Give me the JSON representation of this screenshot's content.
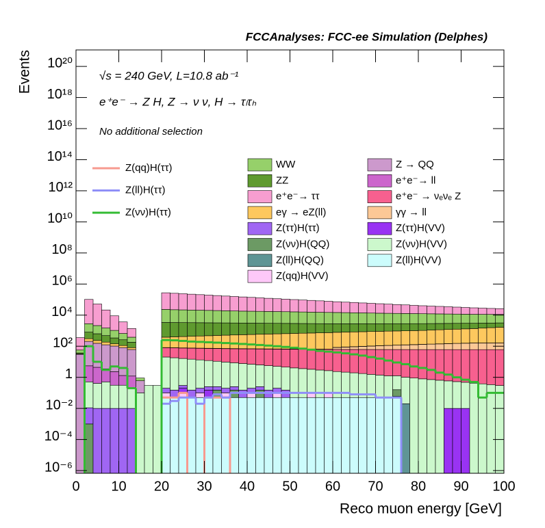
{
  "chart_data": {
    "type": "stacked_histogram",
    "title": "FCCAnalyses: FCC-ee Simulation (Delphes)",
    "annotations": [
      "√s = 240 GeV, L=10.8 ab⁻¹",
      "e⁺e⁻ → Z H, Z → ν ν, H → τₗτₕ",
      "No additional selection"
    ],
    "x_label": "Reco muon energy [GeV]",
    "y_label": "Events",
    "log_y": true,
    "bins": [
      0,
      2,
      4,
      6,
      8,
      10,
      12,
      14,
      16,
      18,
      20,
      22,
      24,
      26,
      28,
      30,
      32,
      34,
      36,
      38,
      40,
      42,
      44,
      46,
      48,
      50,
      52,
      54,
      56,
      58,
      60,
      62,
      64,
      66,
      68,
      70,
      72,
      74,
      76,
      78,
      80,
      82,
      84,
      86,
      88,
      90,
      92,
      94,
      96,
      98,
      100
    ],
    "xlim": [
      0,
      100
    ],
    "xticks": [
      0,
      10,
      20,
      30,
      40,
      50,
      60,
      70,
      80,
      90,
      100
    ],
    "ylim": [
      6.7e-07,
      1.15e+21
    ],
    "yticks": [
      {
        "value": 1e-06,
        "label": "10⁻⁶"
      },
      {
        "value": 0.0001,
        "label": "10⁻⁴"
      },
      {
        "value": 0.01,
        "label": "10⁻²"
      },
      1,
      {
        "value": 100,
        "label": "10²"
      },
      {
        "value": 10000.0,
        "label": "10⁴"
      },
      {
        "value": 1000000.0,
        "label": "10⁶"
      },
      {
        "value": 100000000.0,
        "label": "10⁸"
      },
      {
        "value": 10000000000.0,
        "label": "10¹⁰"
      },
      {
        "value": 1000000000000.0,
        "label": "10¹²"
      },
      {
        "value": 100000000000000.0,
        "label": "10¹⁴"
      },
      {
        "value": 1e+16,
        "label": "10¹⁶"
      },
      {
        "value": 1e+18,
        "label": "10¹⁸"
      },
      {
        "value": 1e+20,
        "label": "10²⁰"
      }
    ],
    "series": [
      {
        "name": "Z(ll)H(VV)",
        "color": "#ccfcfc",
        "values": [
          0,
          0,
          0,
          0,
          0,
          0,
          0,
          0,
          0,
          0,
          0.05,
          0.05,
          0.05,
          0.05,
          0.05,
          0.05,
          0.05,
          0.05,
          0.05,
          0.05,
          0.05,
          0.05,
          0.05,
          0.05,
          0.05,
          0.05,
          0.05,
          0.05,
          0.05,
          0.05,
          0.05,
          0.05,
          0.05,
          0.05,
          0.05,
          0.05,
          0.05,
          0.05,
          0,
          0,
          0,
          0,
          0,
          0,
          0,
          0,
          0,
          0,
          0,
          0
        ]
      },
      {
        "name": "Z(qq)H(VV)",
        "color": "#fec8f8",
        "values": [
          0,
          0,
          0,
          0,
          0,
          0,
          0,
          0,
          0,
          0,
          0.05,
          0,
          0.05,
          0,
          0.05,
          0,
          0,
          0.05,
          0,
          0,
          0.05,
          0,
          0,
          0.05,
          0,
          0,
          0,
          0.05,
          0,
          0.05,
          0,
          0,
          0,
          0,
          0,
          0,
          0,
          0,
          0,
          0,
          0,
          0,
          0,
          0,
          0,
          0,
          0,
          0,
          0,
          0
        ]
      },
      {
        "name": "Z(ll)H(QQ)",
        "color": "#5f9595",
        "values": [
          0,
          0,
          0,
          0,
          0,
          0,
          0,
          0,
          0,
          0,
          0,
          0,
          0,
          0,
          0,
          0,
          0,
          0,
          0,
          0,
          0,
          0,
          0,
          0,
          0,
          0,
          0,
          0,
          0,
          0,
          0,
          0,
          0,
          0,
          0,
          0,
          0,
          0.01,
          0.02,
          0,
          0,
          0,
          0,
          0,
          0,
          0,
          0,
          0,
          0,
          0
        ]
      },
      {
        "name": "Z(νν)H(QQ)",
        "color": "#6c9a64",
        "values": [
          0,
          0.001,
          0,
          0,
          0,
          0,
          0,
          0,
          0,
          0,
          0,
          0,
          0,
          0,
          0,
          0,
          0.1,
          0,
          0.1,
          0,
          0,
          0.1,
          0,
          0,
          0,
          0,
          0,
          0,
          0,
          0,
          0,
          0,
          0,
          0,
          0,
          0,
          0,
          0.1,
          0,
          0,
          0,
          0,
          0,
          0,
          0,
          0,
          0,
          0,
          0,
          0
        ]
      },
      {
        "name": "Z(ττ)H(VV)",
        "color": "#9933f3",
        "values": [
          0,
          0,
          0,
          0,
          0,
          0,
          0,
          0,
          0,
          0,
          0,
          0,
          0.1,
          0,
          0,
          0.1,
          0,
          0,
          0,
          0,
          0,
          0,
          0,
          0,
          0,
          0,
          0,
          0,
          0,
          0,
          0,
          0,
          0,
          0,
          0,
          0,
          0,
          0,
          0,
          0,
          0,
          0,
          0,
          0.01,
          0.01,
          0.01,
          0,
          0,
          0,
          0
        ]
      },
      {
        "name": "Z(ττ)H(ττ)",
        "color": "#a066f3",
        "values": [
          0,
          0.01,
          0.01,
          0.01,
          0.01,
          0.01,
          0.01,
          0,
          0,
          0,
          0.1,
          0.1,
          0.1,
          0.1,
          0.1,
          0.1,
          0.1,
          0.1,
          0.1,
          0.1,
          0.1,
          0.1,
          0.1,
          0.1,
          0.1,
          0,
          0,
          0,
          0,
          0,
          0,
          0,
          0,
          0,
          0,
          0,
          0,
          0,
          0,
          0,
          0,
          0,
          0,
          0,
          0,
          0,
          0,
          0,
          0,
          0
        ]
      },
      {
        "name": "Z(νν)H(VV)",
        "color": "#ccf8cc",
        "values": [
          0,
          0.5,
          0.4,
          0.5,
          0.3,
          0.3,
          0.2,
          0.1,
          0.3,
          0.3,
          20,
          18,
          16,
          14.5,
          13,
          11.7,
          10.5,
          9.4,
          8.4,
          7.6,
          6.8,
          6.1,
          5.5,
          4.9,
          4.4,
          4,
          3.6,
          3.2,
          2.9,
          2.6,
          2.3,
          2.1,
          1.9,
          1.7,
          1.5,
          1.35,
          1.2,
          1.1,
          1,
          0.9,
          0.8,
          0.72,
          0.65,
          0.58,
          0.52,
          0.47,
          0.42,
          0.38,
          0.34,
          0.3
        ]
      },
      {
        "name": "e⁺e⁻ → νₑνₑ Z",
        "color": "#f7608f",
        "values": [
          0,
          0,
          0,
          0,
          0,
          0,
          0,
          0,
          0,
          0,
          60,
          60,
          60,
          60,
          60,
          60,
          60,
          60,
          60,
          60,
          60,
          60,
          60,
          60,
          60,
          60,
          60,
          60,
          60,
          60,
          60,
          60,
          60,
          60,
          60,
          60,
          60,
          60,
          60,
          60,
          60,
          60,
          60,
          60,
          60,
          60,
          60,
          60,
          60,
          60
        ]
      },
      {
        "name": "γγ → ll",
        "color": "#fcc896",
        "values": [
          0,
          0,
          0,
          0,
          0,
          0,
          0,
          0,
          0,
          0,
          0,
          0,
          0,
          0,
          0,
          0,
          0,
          0,
          0,
          0,
          0,
          0,
          0,
          0,
          0,
          0,
          0,
          0,
          0,
          0,
          20,
          25,
          30,
          35,
          40,
          45,
          50,
          55,
          60,
          65,
          70,
          75,
          80,
          85,
          90,
          95,
          100,
          100,
          100,
          100
        ]
      },
      {
        "name": "e⁺e⁻→ ll",
        "color": "#cc66cc",
        "values": [
          0,
          5,
          4,
          3,
          2,
          1,
          1,
          0,
          0,
          0,
          2,
          2,
          2,
          2,
          2,
          2,
          2,
          2,
          2,
          2,
          2,
          2,
          2,
          2,
          2,
          2,
          2,
          2,
          2,
          2,
          2,
          2,
          2,
          2,
          2,
          2,
          2,
          2,
          2,
          2,
          2,
          2,
          2,
          2,
          2,
          2,
          2,
          2,
          2,
          2
        ]
      },
      {
        "name": "Z → QQ",
        "color": "#cc99cc",
        "values": [
          30,
          200,
          150,
          120,
          100,
          80,
          60,
          0.5,
          0,
          0,
          0,
          0,
          0,
          0,
          0,
          0,
          0,
          0,
          0,
          0,
          0,
          0,
          0,
          0,
          0,
          0,
          0,
          0,
          0,
          0,
          0,
          0,
          0,
          0,
          0,
          0,
          0,
          0,
          0,
          0,
          0,
          0,
          0,
          0,
          0,
          0,
          0,
          0,
          0,
          0
        ]
      },
      {
        "name": "eγ → eZ(ll)",
        "color": "#fdc85e",
        "values": [
          2,
          100,
          80,
          60,
          40,
          30,
          20,
          0,
          0,
          0,
          300,
          320,
          340,
          360,
          380,
          400,
          420,
          440,
          460,
          480,
          500,
          520,
          540,
          560,
          580,
          600,
          620,
          640,
          660,
          680,
          700,
          720,
          740,
          760,
          780,
          800,
          820,
          840,
          860,
          880,
          900,
          950,
          1000,
          1050,
          1100,
          1150,
          1200,
          1300,
          1400,
          1500
        ]
      },
      {
        "name": "ZZ",
        "color": "#5f9a2f",
        "values": [
          5,
          500,
          400,
          300,
          200,
          150,
          100,
          0,
          0,
          0,
          3000,
          2950,
          2900,
          2850,
          2800,
          2750,
          2700,
          2650,
          2600,
          2550,
          2500,
          2450,
          2400,
          2350,
          2300,
          2250,
          2200,
          2150,
          2100,
          2050,
          2000,
          1980,
          1960,
          1940,
          1920,
          1900,
          1880,
          1860,
          1840,
          1820,
          1800,
          1780,
          1760,
          1740,
          1720,
          1700,
          1650,
          1600,
          1550,
          1500
        ]
      },
      {
        "name": "WW",
        "color": "#96d06a",
        "values": [
          20,
          2000,
          1500,
          1000,
          700,
          400,
          200,
          0.3,
          0,
          0,
          20000,
          19000,
          18500,
          18000,
          17500,
          17000,
          16500,
          16000,
          15500,
          15000,
          14800,
          14500,
          14200,
          14000,
          13700,
          13400,
          13100,
          12800,
          12500,
          12200,
          12000,
          11700,
          11400,
          11100,
          10800,
          10500,
          10300,
          10100,
          9900,
          9700,
          9500,
          9300,
          9100,
          8900,
          8700,
          8500,
          8300,
          8200,
          8100,
          8000
        ]
      },
      {
        "name": "e⁺e⁻→ ττ",
        "color": "#f79ed0",
        "values": [
          300,
          100000,
          50000,
          20000,
          8000,
          3000,
          1000,
          0,
          0,
          0,
          250000,
          232000,
          216000,
          201000,
          187000,
          174000,
          162000,
          150000,
          140000,
          130000,
          121000,
          112000,
          104000,
          97000,
          90000,
          84000,
          78000,
          73000,
          68000,
          63000,
          58000,
          54000,
          51000,
          47000,
          44000,
          41000,
          38000,
          35000,
          33000,
          30000,
          28000,
          26000,
          24500,
          22800,
          21200,
          19700,
          18300,
          17000,
          15800,
          15000
        ]
      }
    ],
    "lines": [
      {
        "name": "Z(qq)H(ττ)",
        "color": "#f79a8f",
        "values": [
          0,
          0,
          0,
          0,
          0,
          0,
          0,
          0,
          0,
          0,
          0.05,
          0.05,
          0.1,
          0,
          0,
          0.05,
          0.05,
          0.05,
          0,
          0,
          0,
          0,
          0,
          0,
          0,
          0,
          0,
          0,
          0,
          0,
          0,
          0,
          0,
          0,
          0,
          0,
          0,
          0,
          0,
          0,
          0,
          0,
          0,
          0,
          0,
          0,
          0,
          0,
          0,
          0
        ]
      },
      {
        "name": "Z(ll)H(ττ)",
        "color": "#8f8ff8",
        "values": [
          0,
          0,
          0,
          0,
          0,
          0,
          0,
          0,
          0,
          0,
          0.02,
          0.03,
          0.05,
          0.05,
          0.02,
          0.05,
          0.08,
          0.05,
          0.1,
          0.1,
          0.1,
          0.1,
          0.1,
          0.1,
          0.1,
          0.1,
          0.1,
          0.1,
          0.1,
          0.1,
          0.1,
          0.1,
          0.08,
          0.08,
          0.08,
          0.05,
          0.05,
          0.05,
          0,
          0,
          0,
          0,
          0,
          0,
          0,
          0,
          0,
          0,
          0,
          0
        ]
      },
      {
        "name": "Z(νν)H(ττ)",
        "color": "#33bb33",
        "values": [
          0,
          100,
          10,
          3,
          5,
          4,
          0.2,
          0,
          0,
          0,
          250,
          240,
          220,
          200,
          190,
          180,
          170,
          160,
          150,
          140,
          130,
          120,
          110,
          100,
          90,
          80,
          70,
          60,
          50,
          45,
          40,
          35,
          30,
          25,
          20,
          16,
          12,
          9,
          7,
          5,
          4,
          3,
          2,
          1.5,
          1,
          0.7,
          0.5,
          0.05,
          0.1,
          0.1
        ]
      }
    ]
  }
}
